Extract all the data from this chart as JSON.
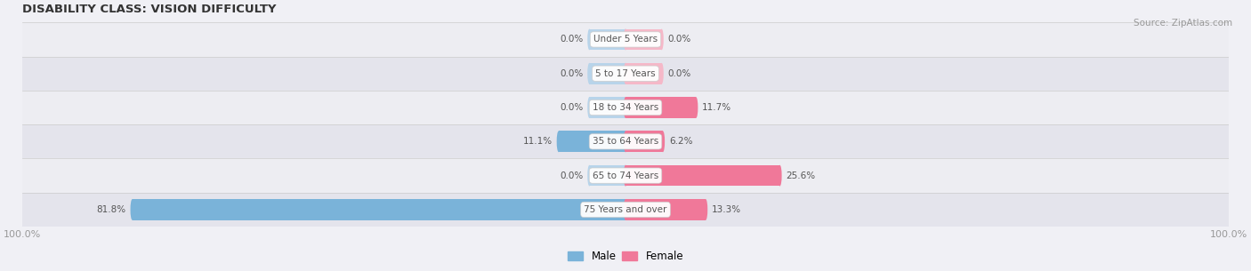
{
  "title": "DISABILITY CLASS: VISION DIFFICULTY",
  "source": "Source: ZipAtlas.com",
  "categories": [
    "Under 5 Years",
    "5 to 17 Years",
    "18 to 34 Years",
    "35 to 64 Years",
    "65 to 74 Years",
    "75 Years and over"
  ],
  "male_values": [
    0.0,
    0.0,
    0.0,
    11.1,
    0.0,
    81.8
  ],
  "female_values": [
    0.0,
    0.0,
    11.7,
    6.2,
    25.6,
    13.3
  ],
  "male_color": "#7ab3d9",
  "female_color": "#f07899",
  "male_color_light": "#b8d4ea",
  "female_color_light": "#f5b8c8",
  "row_bg_colors": [
    "#ededf2",
    "#e4e4ec",
    "#ededf2",
    "#e4e4ec",
    "#ededf2",
    "#e4e4ec"
  ],
  "label_color": "#555555",
  "title_color": "#333333",
  "axis_label_color": "#999999",
  "max_val": 100.0,
  "stub_size": 6.0,
  "bar_height": 0.62,
  "figsize": [
    14.06,
    3.05
  ],
  "dpi": 100
}
